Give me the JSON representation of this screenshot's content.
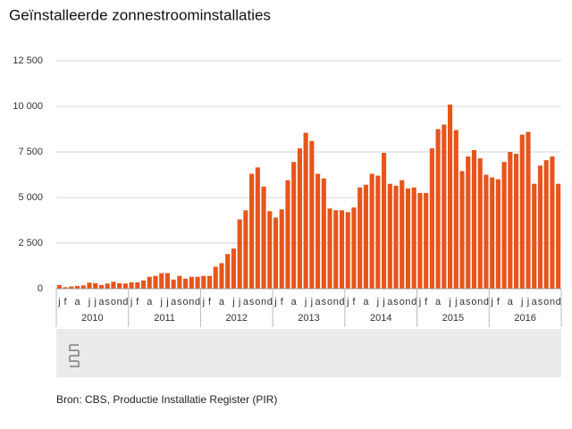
{
  "chart_data": {
    "type": "bar",
    "title": "Geïnstalleerde zonnestroominstallaties",
    "source": "Bron: CBS, Productie Installatie Register (PIR)",
    "color": "#e8541b",
    "grid": true,
    "groups": [
      "2010",
      "2011",
      "2012",
      "2013",
      "2014",
      "2015",
      "2016"
    ],
    "categories": [
      "j",
      "f",
      null,
      "a",
      null,
      "j",
      "j",
      "a",
      "s",
      "o",
      "n",
      "d",
      "j",
      "f",
      null,
      "a",
      null,
      "j",
      "j",
      "a",
      "s",
      "o",
      "n",
      "d",
      "j",
      "f",
      null,
      "a",
      null,
      "j",
      "j",
      "a",
      "s",
      "o",
      "n",
      "d",
      "j",
      "f",
      null,
      "a",
      null,
      "j",
      "j",
      "a",
      "s",
      "o",
      "n",
      "d",
      "j",
      "f",
      null,
      "a",
      null,
      "j",
      "j",
      "a",
      "s",
      "o",
      "n",
      "d",
      "j",
      "f",
      null,
      "a",
      null,
      "j",
      "j",
      "a",
      "s",
      "o",
      "n",
      "d",
      "j",
      "f",
      null,
      "a",
      null,
      "j",
      "j",
      "a",
      "s",
      "o",
      "n",
      "d"
    ],
    "values": [
      200,
      80,
      120,
      150,
      180,
      330,
      300,
      200,
      280,
      380,
      300,
      280,
      350,
      350,
      450,
      650,
      700,
      850,
      850,
      500,
      700,
      550,
      650,
      650,
      700,
      700,
      1200,
      1400,
      1900,
      2200,
      3800,
      4300,
      6300,
      6650,
      5600,
      4250,
      3900,
      4350,
      5950,
      6950,
      7700,
      8550,
      8100,
      6300,
      6050,
      4400,
      4300,
      4300,
      4200,
      4450,
      5550,
      5700,
      6300,
      6200,
      7450,
      5750,
      5650,
      5950,
      5500,
      5550,
      5250,
      5250,
      7700,
      8750,
      9000,
      10100,
      8700,
      6450,
      7250,
      7600,
      7150,
      6250,
      6100,
      6000,
      6950,
      7500,
      7400,
      8450,
      8600,
      5750,
      6750,
      7050,
      7250,
      5750
    ],
    "ylim": [
      0,
      12500
    ],
    "yticks": [
      0,
      {
        "value": 2500,
        "label": "2 500"
      },
      {
        "value": 5000,
        "label": "5 000"
      },
      {
        "value": 7500,
        "label": "7 500"
      },
      {
        "value": 10000,
        "label": "10 000"
      },
      {
        "value": 12500,
        "label": "12 500"
      }
    ]
  }
}
